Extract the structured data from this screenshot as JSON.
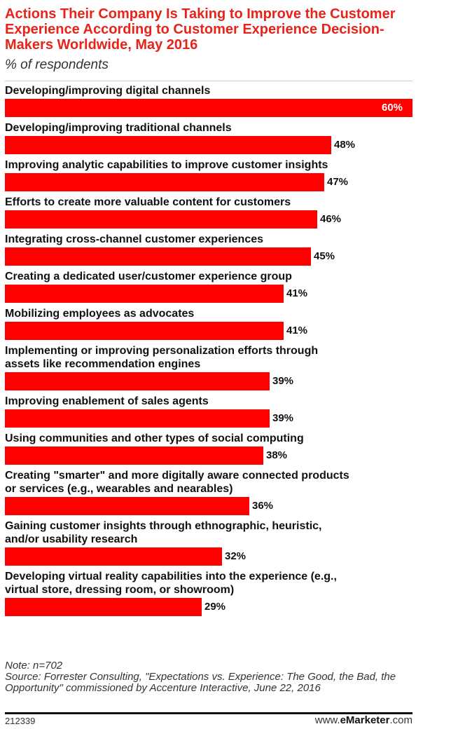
{
  "chart_data": {
    "type": "bar",
    "orientation": "horizontal",
    "title": "Actions Their Company Is Taking to Improve the Customer Experience According to Customer Experience Decision-Makers Worldwide, May 2016",
    "subtitle": "% of respondents",
    "value_suffix": "%",
    "xlim": [
      0,
      60
    ],
    "grid": false,
    "categories": [
      [
        "Developing/improving digital channels"
      ],
      [
        "Developing/improving traditional channels"
      ],
      [
        "Improving analytic capabilities to improve customer insights"
      ],
      [
        "Efforts to create more valuable content for customers"
      ],
      [
        "Integrating cross-channel customer experiences"
      ],
      [
        "Creating a dedicated user/customer experience group"
      ],
      [
        "Mobilizing employees as advocates"
      ],
      [
        "Implementing or improving personalization efforts through",
        "assets like recommendation engines"
      ],
      [
        "Improving enablement of sales agents"
      ],
      [
        "Using communities and other types of social computing"
      ],
      [
        "Creating \"smarter\" and more digitally aware connected products",
        "or services (e.g., wearables and nearables)"
      ],
      [
        "Gaining customer insights through ethnographic, heuristic,",
        "and/or usability research"
      ],
      [
        "Developing virtual reality capabilities into the experience (e.g.,",
        "virtual store, dressing room, or showroom)"
      ]
    ],
    "values": [
      60,
      48,
      47,
      46,
      45,
      41,
      41,
      39,
      39,
      38,
      36,
      32,
      29
    ],
    "bar_color": "#ff0000",
    "title_color": "#e8231a"
  },
  "note": "Note: n=702",
  "source": "Source: Forrester Consulting, \"Expectations vs. Experience: The Good, the Bad, the Opportunity\" commissioned by Accenture Interactive, June 22, 2016",
  "footer": {
    "id": "212339",
    "brand_prefix": "www.",
    "brand_name": "eMarketer",
    "brand_suffix": ".com"
  }
}
